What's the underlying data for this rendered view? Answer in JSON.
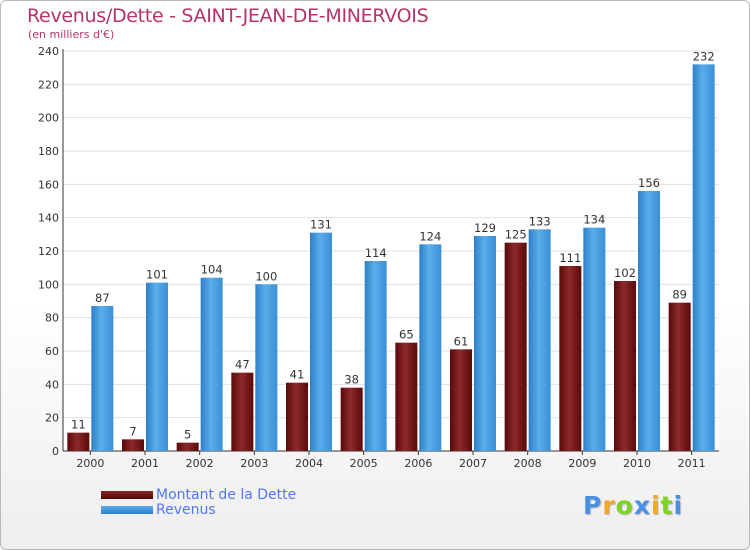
{
  "chart_data": {
    "type": "bar",
    "title": "Revenus/Dette - SAINT-JEAN-DE-MINERVOIS",
    "subtitle": "(en milliers d'€)",
    "categories": [
      "2000",
      "2001",
      "2002",
      "2003",
      "2004",
      "2005",
      "2006",
      "2007",
      "2008",
      "2009",
      "2010",
      "2011"
    ],
    "series": [
      {
        "name": "Montant de la Dette",
        "color": "#8b1a1a",
        "values": [
          11,
          7,
          5,
          47,
          41,
          38,
          65,
          61,
          125,
          111,
          102,
          89
        ]
      },
      {
        "name": "Revenus",
        "color": "#4a9fe0",
        "values": [
          87,
          101,
          104,
          100,
          131,
          114,
          124,
          129,
          133,
          134,
          156,
          232
        ]
      }
    ],
    "ylim": [
      0,
      240
    ],
    "yticks": [
      0,
      20,
      40,
      60,
      80,
      100,
      120,
      140,
      160,
      180,
      200,
      220,
      240
    ],
    "grid": true,
    "legend_position": "bottom-left"
  },
  "branding": {
    "letters": [
      "P",
      "r",
      "o",
      "x",
      "i",
      "t",
      "i"
    ],
    "colors": [
      "#4a90e2",
      "#f5a623",
      "#7ed321",
      "#4a90e2",
      "#f5a623",
      "#7ed321",
      "#4a90e2"
    ]
  }
}
